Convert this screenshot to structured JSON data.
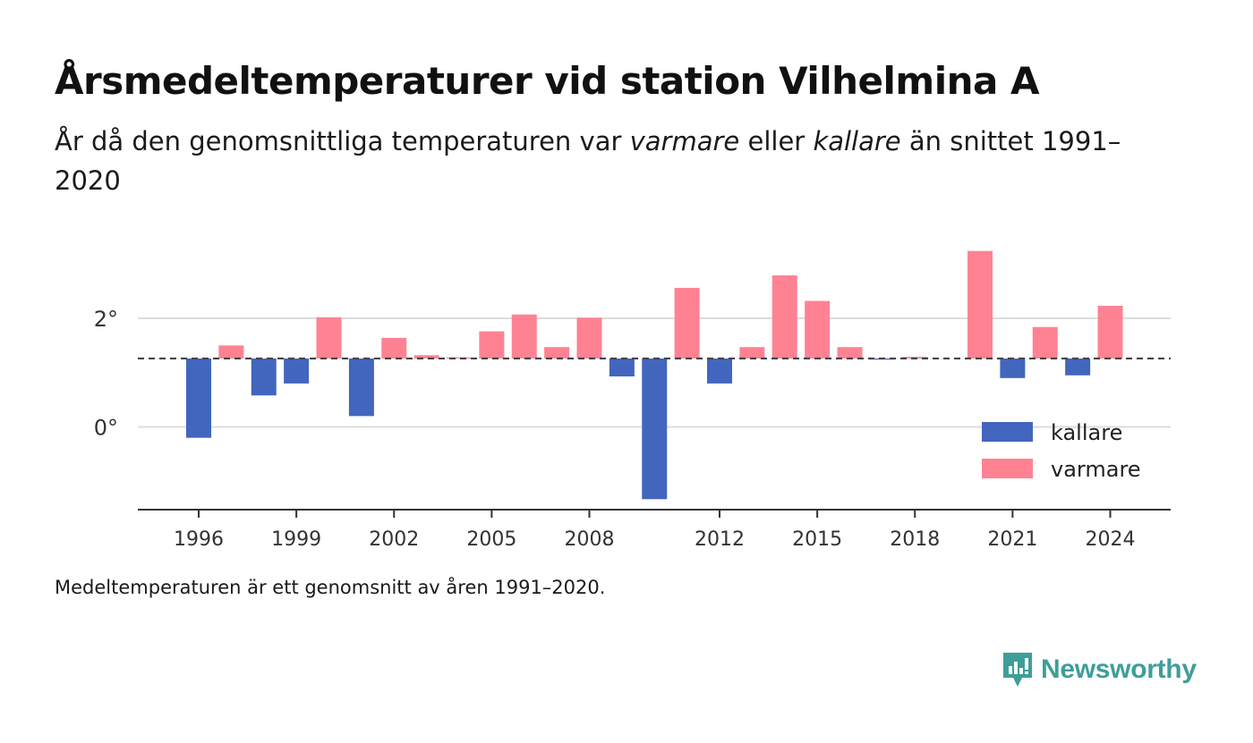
{
  "title": "Årsmedeltemperaturer vid station Vilhelmina A",
  "subtitle": {
    "part1": "År då den genomsnittliga temperaturen var ",
    "em1": "varmare",
    "part2": " eller ",
    "em2": "kallare",
    "part3": " än snittet 1991–2020"
  },
  "footnote": "Medeltemperaturen är ett genomsnitt av åren 1991–2020.",
  "brand": "Newsworthy",
  "colors": {
    "kallare": "#4265be",
    "varmare": "#ff8293",
    "brand": "#3f9e99"
  },
  "chart_data": {
    "type": "bar",
    "baseline": 1.26,
    "baseline_style": "dashed",
    "ylim": [
      -1.5,
      3.3
    ],
    "yticks": [
      {
        "value": 0,
        "label": "0°"
      },
      {
        "value": 2,
        "label": "2°"
      }
    ],
    "xlim": [
      1994.5,
      2026.2
    ],
    "xticks": [
      1996,
      1999,
      2002,
      2005,
      2008,
      2012,
      2015,
      2018,
      2021,
      2024
    ],
    "grid": true,
    "legend": {
      "position": "bottom-right",
      "items": [
        {
          "key": "kallare",
          "label": "kallare"
        },
        {
          "key": "varmare",
          "label": "varmare"
        }
      ]
    },
    "bars": [
      {
        "year": 1996,
        "value": -0.2
      },
      {
        "year": 1997,
        "value": 1.5
      },
      {
        "year": 1998,
        "value": 0.58
      },
      {
        "year": 1999,
        "value": 0.8
      },
      {
        "year": 2000,
        "value": 2.02
      },
      {
        "year": 2001,
        "value": 0.2
      },
      {
        "year": 2002,
        "value": 1.64
      },
      {
        "year": 2003,
        "value": 1.32
      },
      {
        "year": 2004,
        "value": 1.28
      },
      {
        "year": 2005,
        "value": 1.76
      },
      {
        "year": 2006,
        "value": 2.07
      },
      {
        "year": 2007,
        "value": 1.47
      },
      {
        "year": 2008,
        "value": 2.01
      },
      {
        "year": 2009,
        "value": 0.93
      },
      {
        "year": 2010,
        "value": -1.33
      },
      {
        "year": 2011,
        "value": 2.56
      },
      {
        "year": 2012,
        "value": 0.8
      },
      {
        "year": 2013,
        "value": 1.47
      },
      {
        "year": 2014,
        "value": 2.79
      },
      {
        "year": 2015,
        "value": 2.32
      },
      {
        "year": 2016,
        "value": 1.47
      },
      {
        "year": 2017,
        "value": 1.24
      },
      {
        "year": 2018,
        "value": 1.29
      },
      {
        "year": 2020,
        "value": 3.24
      },
      {
        "year": 2021,
        "value": 0.9
      },
      {
        "year": 2022,
        "value": 1.84
      },
      {
        "year": 2023,
        "value": 0.95
      },
      {
        "year": 2024,
        "value": 2.23
      }
    ]
  }
}
